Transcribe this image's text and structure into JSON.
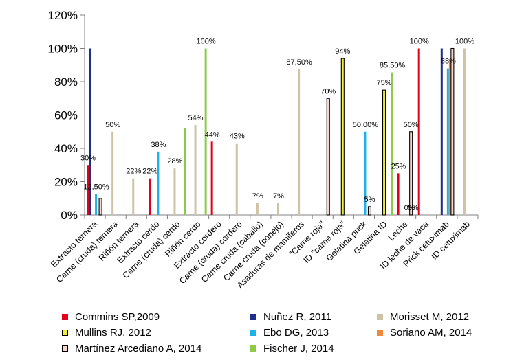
{
  "chart_data": {
    "type": "bar",
    "ylim": [
      0,
      120
    ],
    "yticks": [
      "0%",
      "20%",
      "40%",
      "60%",
      "80%",
      "100%",
      "120%"
    ],
    "grid": false,
    "legend_position": "bottom",
    "categories": [
      "Extracto ternera",
      "Carne (cruda) ternera",
      "Riñón ternera",
      "Extracto cerdo",
      "Carne (cruda) cerdo",
      "Riñón cerdo",
      "Extracto cordero",
      "Carne (cruda) cordero",
      "Carne cruda (caballo)",
      "Carne cruda (conejo)",
      "Asaduras de mamiferos",
      "\"Carne roja\"",
      "ID \"carne roja\"",
      "Gelatina prick",
      "Gelatina ID",
      "Leche",
      "ID leche de vaca",
      "Prick cetuximab",
      "ID cetuximab"
    ],
    "series": [
      {
        "name": "Commins SP,2009",
        "color": "#e3001b",
        "edge": "#e3001b",
        "values": [
          30,
          null,
          null,
          22,
          null,
          null,
          44,
          null,
          null,
          null,
          null,
          null,
          null,
          null,
          null,
          25,
          100,
          null,
          null
        ],
        "labels": [
          "30%",
          null,
          null,
          "22%",
          null,
          null,
          "44%",
          null,
          null,
          null,
          null,
          null,
          null,
          null,
          null,
          "25%",
          "100%",
          null,
          null
        ]
      },
      {
        "name": "Nuñez R, 2011",
        "color": "#1f2f8c",
        "edge": "#1f2f8c",
        "values": [
          100,
          null,
          null,
          null,
          null,
          null,
          null,
          null,
          null,
          null,
          null,
          null,
          null,
          null,
          null,
          null,
          null,
          100,
          null
        ],
        "labels": [
          null,
          null,
          null,
          null,
          null,
          null,
          null,
          null,
          null,
          null,
          null,
          null,
          null,
          null,
          null,
          null,
          null,
          null,
          null
        ]
      },
      {
        "name": "Morisset M, 2012",
        "color": "#cfc3a5",
        "edge": "#cfc3a5",
        "values": [
          null,
          50,
          22,
          null,
          28,
          54,
          null,
          43,
          7,
          7,
          87.5,
          null,
          null,
          null,
          null,
          null,
          null,
          null,
          100
        ],
        "labels": [
          null,
          "50%",
          "22%",
          null,
          "28%",
          "54%",
          null,
          "43%",
          "7%",
          "7%",
          "87,50%",
          null,
          null,
          null,
          null,
          null,
          null,
          null,
          "100%"
        ]
      },
      {
        "name": "Mullins RJ, 2012",
        "color": "#f2ef3a",
        "edge": "#000000",
        "values": [
          null,
          null,
          null,
          null,
          null,
          null,
          null,
          null,
          null,
          null,
          null,
          null,
          94,
          null,
          75,
          null,
          null,
          null,
          null
        ],
        "labels": [
          null,
          null,
          null,
          null,
          null,
          null,
          null,
          null,
          null,
          null,
          null,
          null,
          "94%",
          null,
          "75%",
          null,
          null,
          null,
          null
        ]
      },
      {
        "name": "Ebo DG, 2013",
        "color": "#1eb0e8",
        "edge": "#1eb0e8",
        "values": [
          12.5,
          null,
          null,
          38,
          null,
          null,
          null,
          null,
          null,
          null,
          null,
          null,
          null,
          50,
          null,
          null,
          null,
          88,
          null
        ],
        "labels": [
          "12,50%",
          null,
          null,
          "38%",
          null,
          null,
          null,
          null,
          null,
          null,
          null,
          null,
          null,
          "50,00%",
          null,
          null,
          null,
          "88%",
          null
        ]
      },
      {
        "name": "Soriano AM, 2014",
        "color": "#ef8a3c",
        "edge": "#ef8a3c",
        "values": [
          null,
          null,
          null,
          null,
          null,
          null,
          null,
          null,
          null,
          null,
          null,
          null,
          null,
          null,
          null,
          null,
          null,
          93,
          null
        ],
        "labels": [
          null,
          null,
          null,
          null,
          null,
          null,
          null,
          null,
          null,
          null,
          null,
          null,
          null,
          null,
          null,
          null,
          null,
          null,
          null
        ]
      },
      {
        "name": "Martínez Arcediano A, 2014",
        "color": "#f6d7d0",
        "edge": "#000000",
        "values": [
          10,
          null,
          null,
          null,
          null,
          null,
          null,
          null,
          null,
          null,
          null,
          70,
          null,
          5,
          null,
          50,
          null,
          100,
          null
        ],
        "labels": [
          null,
          null,
          null,
          null,
          null,
          null,
          null,
          null,
          null,
          null,
          null,
          "70%",
          null,
          "5%",
          null,
          "50%",
          null,
          null,
          null
        ]
      },
      {
        "name": "Fischer J, 2014",
        "color": "#8fc94a",
        "edge": "#8fc94a",
        "values": [
          null,
          null,
          null,
          null,
          52,
          100,
          null,
          null,
          null,
          null,
          null,
          null,
          null,
          null,
          85.5,
          0,
          null,
          null,
          null
        ],
        "labels": [
          null,
          null,
          null,
          null,
          null,
          "100%",
          null,
          null,
          null,
          null,
          null,
          null,
          null,
          null,
          "85,50%",
          "0%",
          null,
          null,
          null
        ]
      }
    ],
    "extra_labels": [
      {
        "category": 15,
        "value": 0,
        "text": "0%"
      }
    ]
  }
}
